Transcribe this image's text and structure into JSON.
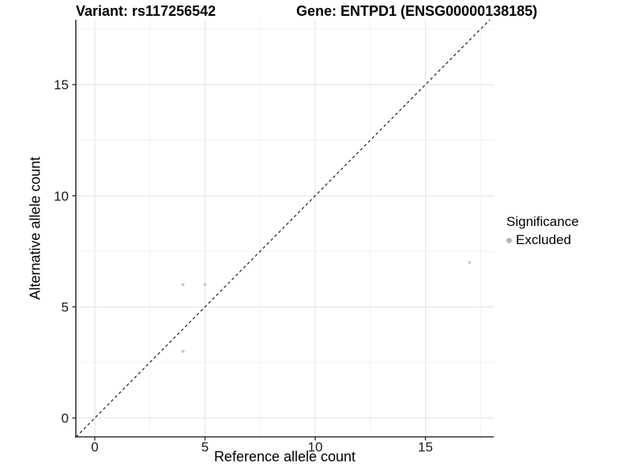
{
  "figure": {
    "title_left": "Variant: rs117256542",
    "title_right": "Gene: ENTPD1 (ENSG00000138185)"
  },
  "chart_data": {
    "type": "scatter",
    "title": "Variant: rs117256542 / Gene: ENTPD1 (ENSG00000138185)",
    "xlabel": "Reference allele count",
    "ylabel": "Alternative allele count",
    "xlim": [
      -0.86,
      18.1
    ],
    "ylim": [
      -0.85,
      17.92
    ],
    "x_major_ticks": [
      0,
      5,
      10,
      15
    ],
    "x_minor_ticks": [
      2.5,
      7.5,
      12.5,
      17.5
    ],
    "y_major_ticks": [
      0,
      5,
      10,
      15
    ],
    "y_minor_ticks": [
      2.5,
      7.5,
      12.5,
      17.5
    ],
    "grid": "major+minor",
    "series": [
      {
        "name": "Excluded",
        "color": "#c8c8c8",
        "points": [
          [
            4,
            6
          ],
          [
            5,
            6
          ],
          [
            4,
            3
          ],
          [
            17,
            7
          ]
        ]
      }
    ],
    "reference_line": {
      "type": "identity y=x",
      "style": "dashed",
      "color": "#1c1c1c"
    },
    "legend": {
      "title": "Significance",
      "position": "right",
      "entries": [
        {
          "label": "Excluded",
          "marker": "circle",
          "color": "#b4b4b4"
        }
      ]
    },
    "colors": {
      "major_grid": "#e3e3e3",
      "minor_grid": "#f0f0f0",
      "axis_line": "#333333",
      "tick_text": "#1a1a1a",
      "background": "#ffffff"
    }
  }
}
